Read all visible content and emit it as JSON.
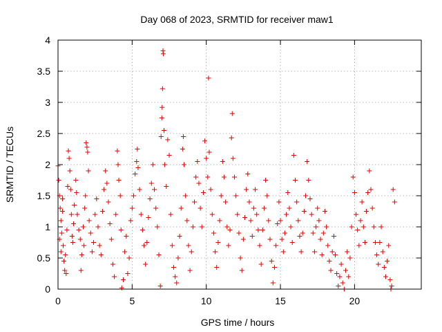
{
  "chart_data": {
    "type": "scatter",
    "title": "Day 068 of 2023, SRMTID for receiver maw1",
    "xlabel": "GPS time / hours",
    "ylabel": "SRMTID / TECUs",
    "xlim": [
      0,
      24.5
    ],
    "ylim": [
      0,
      4
    ],
    "grid": true,
    "marker": "+",
    "color": "#e00000",
    "xticks": [
      0,
      5,
      10,
      15,
      20
    ],
    "xtick_labels": [
      "0",
      "5",
      "10",
      "15",
      "20"
    ],
    "yticks": [
      0,
      0.5,
      1,
      1.5,
      2,
      2.5,
      3,
      3.5,
      4
    ],
    "ytick_labels": [
      "0",
      "0.5",
      "1",
      "1.5",
      "2",
      "2.5",
      "3",
      "3.5",
      "4"
    ],
    "series": [
      {
        "name": "maw1",
        "points": [
          [
            0.0,
            1.98
          ],
          [
            0.05,
            1.75
          ],
          [
            0.1,
            1.5
          ],
          [
            0.15,
            1.3
          ],
          [
            0.2,
            1.1
          ],
          [
            0.1,
            0.8
          ],
          [
            0.2,
            0.6
          ],
          [
            0.25,
            0.9
          ],
          [
            0.3,
            1.45
          ],
          [
            0.3,
            1.25
          ],
          [
            0.35,
            0.7
          ],
          [
            0.4,
            0.45
          ],
          [
            0.45,
            0.3
          ],
          [
            0.5,
            0.55
          ],
          [
            0.55,
            0.25
          ],
          [
            0.6,
            0.95
          ],
          [
            0.65,
            1.65
          ],
          [
            0.7,
            2.22
          ],
          [
            0.75,
            2.1
          ],
          [
            0.8,
            1.9
          ],
          [
            0.85,
            1.6
          ],
          [
            0.9,
            1.2
          ],
          [
            0.95,
            0.85
          ],
          [
            1.0,
            0.75
          ],
          [
            1.05,
            1.05
          ],
          [
            1.1,
            1.35
          ],
          [
            1.2,
            1.75
          ],
          [
            1.25,
            1.55
          ],
          [
            1.3,
            1.2
          ],
          [
            1.4,
            0.95
          ],
          [
            1.5,
            0.8
          ],
          [
            1.55,
            0.3
          ],
          [
            1.6,
            0.55
          ],
          [
            1.7,
            1.0
          ],
          [
            1.75,
            0.7
          ],
          [
            1.8,
            1.3
          ],
          [
            1.85,
            1.5
          ],
          [
            1.9,
            2.35
          ],
          [
            1.95,
            2.28
          ],
          [
            2.0,
            2.2
          ],
          [
            2.05,
            1.9
          ],
          [
            2.1,
            1.1
          ],
          [
            2.2,
            0.9
          ],
          [
            2.3,
            0.6
          ],
          [
            2.4,
            0.75
          ],
          [
            2.5,
            1.2
          ],
          [
            2.6,
            1.45
          ],
          [
            2.7,
            1.0
          ],
          [
            2.8,
            0.7
          ],
          [
            2.9,
            0.55
          ],
          [
            3.0,
            1.25
          ],
          [
            3.1,
            1.6
          ],
          [
            3.2,
            1.9
          ],
          [
            3.3,
            1.7
          ],
          [
            3.4,
            1.4
          ],
          [
            3.5,
            1.05
          ],
          [
            3.6,
            0.8
          ],
          [
            3.7,
            0.4
          ],
          [
            3.8,
            0.2
          ],
          [
            3.9,
            1.2
          ],
          [
            4.0,
            2.22
          ],
          [
            4.05,
            2.0
          ],
          [
            4.1,
            1.75
          ],
          [
            4.2,
            1.5
          ],
          [
            4.25,
            0.95
          ],
          [
            4.3,
            0.02
          ],
          [
            4.4,
            0.15
          ],
          [
            4.5,
            0.6
          ],
          [
            4.6,
            0.85
          ],
          [
            4.7,
            0.25
          ],
          [
            4.8,
            0.5
          ],
          [
            4.9,
            1.1
          ],
          [
            5.0,
            1.3
          ],
          [
            5.1,
            1.5
          ],
          [
            5.2,
            1.85
          ],
          [
            5.3,
            2.05
          ],
          [
            5.35,
            2.25
          ],
          [
            5.4,
            1.95
          ],
          [
            5.5,
            1.6
          ],
          [
            5.6,
            1.2
          ],
          [
            5.7,
            0.95
          ],
          [
            5.8,
            0.7
          ],
          [
            5.9,
            0.4
          ],
          [
            6.0,
            0.75
          ],
          [
            6.1,
            1.15
          ],
          [
            6.2,
            1.45
          ],
          [
            6.3,
            1.7
          ],
          [
            6.4,
            2.0
          ],
          [
            6.5,
            1.6
          ],
          [
            6.6,
            1.3
          ],
          [
            6.7,
            1.0
          ],
          [
            6.8,
            0.55
          ],
          [
            6.9,
            0.05
          ],
          [
            6.95,
            2.45
          ],
          [
            7.0,
            2.75
          ],
          [
            7.02,
            2.92
          ],
          [
            7.05,
            3.22
          ],
          [
            7.08,
            3.83
          ],
          [
            7.1,
            3.78
          ],
          [
            7.15,
            2.55
          ],
          [
            7.2,
            2.0
          ],
          [
            7.3,
            1.65
          ],
          [
            7.4,
            2.4
          ],
          [
            7.5,
            2.15
          ],
          [
            7.6,
            1.2
          ],
          [
            7.7,
            0.7
          ],
          [
            7.8,
            0.35
          ],
          [
            7.9,
            0.2
          ],
          [
            8.0,
            0.1
          ],
          [
            8.1,
            0.5
          ],
          [
            8.2,
            0.85
          ],
          [
            8.3,
            1.3
          ],
          [
            8.4,
            2.25
          ],
          [
            8.45,
            2.45
          ],
          [
            8.5,
            2.0
          ],
          [
            8.6,
            1.5
          ],
          [
            8.7,
            1.1
          ],
          [
            8.8,
            0.7
          ],
          [
            8.9,
            0.3
          ],
          [
            9.0,
            0.6
          ],
          [
            9.1,
            1.0
          ],
          [
            9.2,
            1.4
          ],
          [
            9.3,
            1.8
          ],
          [
            9.4,
            2.05
          ],
          [
            9.5,
            1.7
          ],
          [
            9.6,
            1.3
          ],
          [
            9.7,
            1.0
          ],
          [
            9.8,
            1.55
          ],
          [
            9.9,
            2.38
          ],
          [
            10.0,
            2.1
          ],
          [
            10.1,
            1.8
          ],
          [
            10.15,
            3.39
          ],
          [
            10.2,
            2.2
          ],
          [
            10.3,
            1.6
          ],
          [
            10.4,
            1.2
          ],
          [
            10.5,
            0.9
          ],
          [
            10.6,
            0.6
          ],
          [
            10.7,
            0.35
          ],
          [
            10.8,
            0.75
          ],
          [
            10.9,
            1.1
          ],
          [
            11.0,
            1.5
          ],
          [
            11.1,
            2.05
          ],
          [
            11.2,
            1.8
          ],
          [
            11.3,
            1.4
          ],
          [
            11.4,
            1.0
          ],
          [
            11.5,
            0.7
          ],
          [
            11.6,
            0.95
          ],
          [
            11.7,
            2.43
          ],
          [
            11.75,
            2.82
          ],
          [
            11.8,
            2.1
          ],
          [
            11.9,
            1.8
          ],
          [
            12.0,
            1.5
          ],
          [
            12.1,
            1.2
          ],
          [
            12.2,
            0.9
          ],
          [
            12.3,
            0.5
          ],
          [
            12.4,
            0.3
          ],
          [
            12.5,
            0.8
          ],
          [
            12.6,
            1.15
          ],
          [
            12.7,
            1.6
          ],
          [
            12.8,
            1.85
          ],
          [
            12.9,
            1.4
          ],
          [
            13.0,
            1.1
          ],
          [
            13.1,
            0.85
          ],
          [
            13.2,
            1.3
          ],
          [
            13.3,
            1.6
          ],
          [
            13.4,
            1.2
          ],
          [
            13.5,
            0.95
          ],
          [
            13.6,
            0.7
          ],
          [
            13.7,
            0.4
          ],
          [
            13.8,
            0.95
          ],
          [
            13.9,
            1.3
          ],
          [
            14.0,
            1.75
          ],
          [
            14.1,
            1.5
          ],
          [
            14.2,
            1.1
          ],
          [
            14.3,
            0.8
          ],
          [
            14.4,
            0.45
          ],
          [
            14.5,
            0.1
          ],
          [
            14.6,
            0.35
          ],
          [
            14.7,
            0.7
          ],
          [
            14.8,
            1.05
          ],
          [
            14.9,
            1.4
          ],
          [
            15.0,
            1.1
          ],
          [
            15.1,
            0.8
          ],
          [
            15.2,
            0.6
          ],
          [
            15.3,
            0.9
          ],
          [
            15.4,
            1.2
          ],
          [
            15.5,
            1.55
          ],
          [
            15.6,
            1.3
          ],
          [
            15.7,
            1.0
          ],
          [
            15.8,
            0.75
          ],
          [
            15.9,
            2.15
          ],
          [
            16.0,
            1.75
          ],
          [
            16.1,
            1.4
          ],
          [
            16.2,
            1.1
          ],
          [
            16.3,
            0.85
          ],
          [
            16.4,
            0.6
          ],
          [
            16.5,
            0.9
          ],
          [
            16.6,
            1.25
          ],
          [
            16.7,
            1.5
          ],
          [
            16.8,
            2.05
          ],
          [
            16.9,
            1.75
          ],
          [
            17.0,
            1.45
          ],
          [
            17.1,
            1.2
          ],
          [
            17.2,
            0.9
          ],
          [
            17.3,
            0.6
          ],
          [
            17.4,
            1.0
          ],
          [
            17.5,
            1.3
          ],
          [
            17.6,
            1.1
          ],
          [
            17.7,
            0.8
          ],
          [
            17.8,
            0.55
          ],
          [
            17.9,
            0.9
          ],
          [
            18.0,
            1.25
          ],
          [
            18.1,
            1.0
          ],
          [
            18.2,
            0.7
          ],
          [
            18.3,
            0.45
          ],
          [
            18.4,
            0.3
          ],
          [
            18.5,
            0.6
          ],
          [
            18.6,
            0.85
          ],
          [
            18.7,
            0.55
          ],
          [
            18.8,
            0.25
          ],
          [
            18.9,
            0.05
          ],
          [
            19.0,
            0.2
          ],
          [
            19.1,
            0.4
          ],
          [
            19.2,
            0.1
          ],
          [
            19.3,
            0.0
          ],
          [
            19.4,
            0.3
          ],
          [
            19.5,
            0.6
          ],
          [
            19.6,
            0.2
          ],
          [
            19.7,
            0.5
          ],
          [
            19.8,
            1.0
          ],
          [
            19.9,
            1.8
          ],
          [
            20.0,
            1.55
          ],
          [
            20.1,
            1.2
          ],
          [
            20.2,
            0.95
          ],
          [
            20.3,
            0.7
          ],
          [
            20.4,
            1.1
          ],
          [
            20.5,
            1.4
          ],
          [
            20.6,
            1.0
          ],
          [
            20.7,
            0.75
          ],
          [
            20.8,
            1.25
          ],
          [
            20.9,
            1.55
          ],
          [
            21.0,
            1.9
          ],
          [
            21.1,
            1.6
          ],
          [
            21.2,
            1.3
          ],
          [
            21.3,
            1.0
          ],
          [
            21.4,
            0.75
          ],
          [
            21.5,
            0.55
          ],
          [
            21.6,
            0.4
          ],
          [
            21.7,
            0.75
          ],
          [
            21.8,
            1.0
          ],
          [
            21.9,
            0.6
          ],
          [
            22.0,
            0.35
          ],
          [
            22.1,
            0.2
          ],
          [
            22.2,
            0.45
          ],
          [
            22.3,
            0.7
          ],
          [
            22.4,
            0.15
          ],
          [
            22.45,
            0.0
          ],
          [
            22.5,
            0.05
          ],
          [
            22.6,
            1.6
          ],
          [
            22.7,
            1.4
          ]
        ]
      }
    ]
  }
}
